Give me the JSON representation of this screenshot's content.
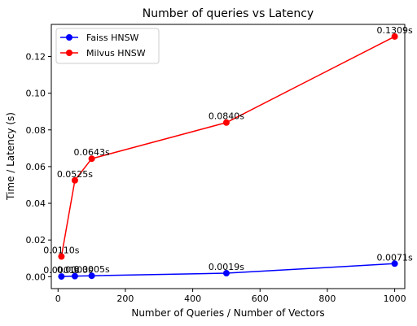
{
  "chart_data": {
    "type": "line",
    "title": "Number of queries vs  Latency",
    "xlabel": "Number of Queries / Number of Vectors",
    "ylabel": "Time / Latency (s)",
    "xlim": [
      -20,
      1030
    ],
    "ylim": [
      -0.0065,
      0.1375
    ],
    "xticks": [
      0,
      200,
      400,
      600,
      800,
      1000
    ],
    "xtick_labels": [
      "0",
      "200",
      "400",
      "600",
      "800",
      "1000"
    ],
    "yticks": [
      0.0,
      0.02,
      0.04,
      0.06,
      0.08,
      0.1,
      0.12
    ],
    "ytick_labels": [
      "0.00",
      "0.02",
      "0.04",
      "0.06",
      "0.08",
      "0.10",
      "0.12"
    ],
    "grid": false,
    "legend_position": "top-left",
    "series": [
      {
        "name": "Faiss HNSW",
        "color": "#0000ff",
        "x": [
          10,
          50,
          100,
          500,
          1000
        ],
        "y": [
          0.0001,
          0.0003,
          0.0005,
          0.0019,
          0.0071
        ],
        "labels": [
          "0.0001s",
          "0.0003s",
          "0.0005s",
          "0.0019s",
          "0.0071s"
        ]
      },
      {
        "name": "Milvus HNSW",
        "color": "#ff0000",
        "x": [
          10,
          50,
          100,
          500,
          1000
        ],
        "y": [
          0.011,
          0.0525,
          0.0643,
          0.084,
          0.1309
        ],
        "labels": [
          "0.0110s",
          "0.0525s",
          "0.0643s",
          "0.0840s",
          "0.1309s"
        ]
      }
    ]
  }
}
